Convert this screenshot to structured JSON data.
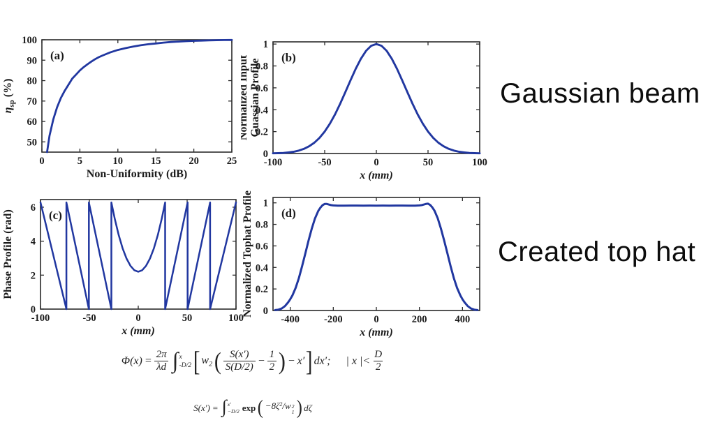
{
  "colors": {
    "curve": "#2137a0",
    "axis": "#2a2a2a",
    "text": "#1a1a1a"
  },
  "annotations": {
    "gaussian_beam": "Gaussian beam",
    "created_top_hat": "Created top hat"
  },
  "formulas": {
    "phi": {
      "lhs": "Φ(x)",
      "equals": "=",
      "coef_num": "2π",
      "coef_den": "λd",
      "integral": "∫",
      "int_sup": "x",
      "int_sub": "-D/2",
      "open_sq": "[",
      "w": "w",
      "w_sub": "2",
      "open_paren": "(",
      "s_num": "S(x′)",
      "s_den": "S(D/2)",
      "minus_a": "−",
      "half_num": "1",
      "half_den": "2",
      "close_paren": ")",
      "minus_b": "−",
      "x_prime": "x′",
      "close_sq": "]",
      "trailer": "dx′;",
      "condition": "| x |<",
      "d_num": "D",
      "d_den": "2"
    },
    "s": {
      "lhs": "S(x′)",
      "equals": "=",
      "integral": "∫",
      "int_sup": "x′",
      "int_sub": "−D/2",
      "exp": "exp",
      "open_paren": "(",
      "arg": "−8ζ",
      "arg_sup": "2",
      "slash": "/",
      "w": "w",
      "w_sup": "2",
      "w_sub": "1",
      "close_paren": ")",
      "trailer": "dζ"
    }
  },
  "chart_data": [
    {
      "id": "a",
      "type": "line",
      "panel": "(a)",
      "xlabel": "Non-Uniformity (dB)",
      "xlabel_italic": false,
      "ylabel_lines": [
        [
          {
            "t": "η",
            "it": true
          },
          {
            "t": "sp",
            "small": true,
            "dy": 4
          },
          {
            "t": " (%)",
            "dy": -4
          }
        ]
      ],
      "xlim": [
        0,
        25
      ],
      "ylim": [
        45,
        100
      ],
      "xticks": [
        [
          0,
          "0"
        ],
        [
          5,
          "5"
        ],
        [
          10,
          "10"
        ],
        [
          15,
          "15"
        ],
        [
          20,
          "20"
        ],
        [
          25,
          "25"
        ]
      ],
      "yticks": [
        [
          50,
          "50"
        ],
        [
          60,
          "60"
        ],
        [
          70,
          "70"
        ],
        [
          80,
          "80"
        ],
        [
          90,
          "90"
        ],
        [
          100,
          "100"
        ]
      ],
      "lw": 2.8,
      "points": [
        [
          0.68,
          45
        ],
        [
          1,
          53
        ],
        [
          1.5,
          61
        ],
        [
          2,
          67
        ],
        [
          2.5,
          71.5
        ],
        [
          3,
          75
        ],
        [
          3.5,
          78
        ],
        [
          4,
          81
        ],
        [
          4.5,
          83
        ],
        [
          5,
          85
        ],
        [
          5.5,
          86.6
        ],
        [
          6,
          88
        ],
        [
          6.5,
          89.3
        ],
        [
          7,
          90.5
        ],
        [
          7.5,
          91.5
        ],
        [
          8,
          92.3
        ],
        [
          9,
          93.8
        ],
        [
          10,
          95
        ],
        [
          11,
          95.9
        ],
        [
          12,
          96.7
        ],
        [
          13,
          97.3
        ],
        [
          14,
          97.8
        ],
        [
          15,
          98.2
        ],
        [
          16,
          98.6
        ],
        [
          17,
          98.9
        ],
        [
          18,
          99.1
        ],
        [
          19,
          99.3
        ],
        [
          20,
          99.5
        ],
        [
          21,
          99.6
        ],
        [
          22,
          99.7
        ],
        [
          23,
          99.8
        ],
        [
          24,
          99.85
        ],
        [
          25,
          99.9
        ]
      ]
    },
    {
      "id": "b",
      "type": "line",
      "panel": "(b)",
      "xlabel": "x (mm)",
      "xlabel_italic": true,
      "ylabel_lines": [
        "Normalized Input",
        "Guassian Profile"
      ],
      "xlim": [
        -100,
        100
      ],
      "ylim": [
        0,
        1.02
      ],
      "xticks": [
        [
          -100,
          "-100"
        ],
        [
          -50,
          "-50"
        ],
        [
          0,
          "0"
        ],
        [
          50,
          "50"
        ],
        [
          100,
          "100"
        ]
      ],
      "yticks": [
        [
          0,
          "0"
        ],
        [
          0.2,
          "0.2"
        ],
        [
          0.4,
          "0.4"
        ],
        [
          0.6,
          "0.6"
        ],
        [
          0.8,
          "0.8"
        ],
        [
          1,
          "1"
        ]
      ],
      "lw": 2.9,
      "points": [
        [
          -100,
          0.002
        ],
        [
          -95,
          0.003
        ],
        [
          -90,
          0.005
        ],
        [
          -85,
          0.01
        ],
        [
          -80,
          0.016
        ],
        [
          -75,
          0.027
        ],
        [
          -70,
          0.043
        ],
        [
          -65,
          0.066
        ],
        [
          -60,
          0.099
        ],
        [
          -55,
          0.143
        ],
        [
          -50,
          0.2
        ],
        [
          -45,
          0.272
        ],
        [
          -40,
          0.357
        ],
        [
          -35,
          0.455
        ],
        [
          -30,
          0.561
        ],
        [
          -25,
          0.669
        ],
        [
          -20,
          0.773
        ],
        [
          -15,
          0.865
        ],
        [
          -10,
          0.938
        ],
        [
          -5,
          0.984
        ],
        [
          0,
          1
        ],
        [
          5,
          0.984
        ],
        [
          10,
          0.938
        ],
        [
          15,
          0.865
        ],
        [
          20,
          0.773
        ],
        [
          25,
          0.669
        ],
        [
          30,
          0.561
        ],
        [
          35,
          0.455
        ],
        [
          40,
          0.357
        ],
        [
          45,
          0.272
        ],
        [
          50,
          0.2
        ],
        [
          55,
          0.143
        ],
        [
          60,
          0.099
        ],
        [
          65,
          0.066
        ],
        [
          70,
          0.043
        ],
        [
          75,
          0.027
        ],
        [
          80,
          0.016
        ],
        [
          85,
          0.01
        ],
        [
          90,
          0.005
        ],
        [
          95,
          0.003
        ],
        [
          100,
          0.002
        ]
      ]
    },
    {
      "id": "c",
      "type": "line",
      "panel": "(c)",
      "xlabel": "x (mm)",
      "xlabel_italic": true,
      "ylabel_lines": [
        "Phase Profile (rad)"
      ],
      "xlim": [
        -100,
        100
      ],
      "ylim": [
        0,
        6.45
      ],
      "xticks": [
        [
          -100,
          "-100"
        ],
        [
          -50,
          "-50"
        ],
        [
          0,
          "0"
        ],
        [
          50,
          "50"
        ],
        [
          100,
          "100"
        ]
      ],
      "yticks": [
        [
          0,
          "0"
        ],
        [
          2,
          "2"
        ],
        [
          4,
          "4"
        ],
        [
          6,
          "6"
        ]
      ],
      "lw": 2.5,
      "points": [
        [
          -100,
          6.28
        ],
        [
          -73.5,
          0
        ],
        [
          -73.5,
          6.28
        ],
        [
          -50.5,
          0
        ],
        [
          -50.5,
          6.28
        ],
        [
          -27.5,
          0
        ],
        [
          -27.5,
          6.28
        ],
        [
          -24,
          5.31
        ],
        [
          -20,
          4.36
        ],
        [
          -16,
          3.58
        ],
        [
          -12,
          2.98
        ],
        [
          -8,
          2.55
        ],
        [
          -4,
          2.29
        ],
        [
          0,
          2.2
        ],
        [
          4,
          2.29
        ],
        [
          8,
          2.55
        ],
        [
          12,
          2.98
        ],
        [
          16,
          3.58
        ],
        [
          20,
          4.36
        ],
        [
          24,
          5.31
        ],
        [
          27.5,
          6.28
        ],
        [
          27.5,
          0
        ],
        [
          50.5,
          6.28
        ],
        [
          50.5,
          0
        ],
        [
          73.5,
          6.28
        ],
        [
          73.5,
          0
        ],
        [
          100,
          6.28
        ]
      ]
    },
    {
      "id": "d",
      "type": "line",
      "panel": "(d)",
      "xlabel": "x (mm)",
      "xlabel_italic": true,
      "ylabel_lines": [
        "Normalized Tophat Profile"
      ],
      "xlim": [
        -480,
        480
      ],
      "ylim": [
        0,
        1.05
      ],
      "xticks": [
        [
          -400,
          "-400"
        ],
        [
          -200,
          "-200"
        ],
        [
          0,
          "0"
        ],
        [
          200,
          "200"
        ],
        [
          400,
          "400"
        ]
      ],
      "yticks": [
        [
          0,
          "0"
        ],
        [
          0.2,
          "0.2"
        ],
        [
          0.4,
          "0.4"
        ],
        [
          0.6,
          "0.6"
        ],
        [
          0.8,
          "0.8"
        ],
        [
          1,
          "1"
        ]
      ],
      "lw": 3,
      "points": [
        [
          -470,
          0.004
        ],
        [
          -455,
          0.008
        ],
        [
          -440,
          0.018
        ],
        [
          -425,
          0.04
        ],
        [
          -410,
          0.075
        ],
        [
          -400,
          0.105
        ],
        [
          -390,
          0.14
        ],
        [
          -375,
          0.21
        ],
        [
          -360,
          0.3
        ],
        [
          -345,
          0.41
        ],
        [
          -330,
          0.53
        ],
        [
          -315,
          0.65
        ],
        [
          -300,
          0.76
        ],
        [
          -285,
          0.855
        ],
        [
          -270,
          0.925
        ],
        [
          -260,
          0.955
        ],
        [
          -250,
          0.978
        ],
        [
          -240,
          0.99
        ],
        [
          -230,
          0.99
        ],
        [
          -220,
          0.984
        ],
        [
          -210,
          0.979
        ],
        [
          -200,
          0.976
        ],
        [
          -180,
          0.974
        ],
        [
          -150,
          0.974
        ],
        [
          -120,
          0.975
        ],
        [
          -90,
          0.975
        ],
        [
          -60,
          0.974
        ],
        [
          -30,
          0.975
        ],
        [
          0,
          0.974
        ],
        [
          30,
          0.975
        ],
        [
          60,
          0.974
        ],
        [
          90,
          0.975
        ],
        [
          120,
          0.975
        ],
        [
          150,
          0.974
        ],
        [
          180,
          0.974
        ],
        [
          200,
          0.976
        ],
        [
          210,
          0.979
        ],
        [
          220,
          0.984
        ],
        [
          230,
          0.99
        ],
        [
          240,
          0.992
        ],
        [
          250,
          0.98
        ],
        [
          260,
          0.957
        ],
        [
          270,
          0.927
        ],
        [
          285,
          0.857
        ],
        [
          300,
          0.76
        ],
        [
          315,
          0.65
        ],
        [
          330,
          0.53
        ],
        [
          345,
          0.41
        ],
        [
          360,
          0.3
        ],
        [
          375,
          0.21
        ],
        [
          390,
          0.14
        ],
        [
          400,
          0.105
        ],
        [
          410,
          0.075
        ],
        [
          425,
          0.04
        ],
        [
          440,
          0.018
        ],
        [
          455,
          0.008
        ],
        [
          470,
          0.004
        ]
      ]
    }
  ]
}
